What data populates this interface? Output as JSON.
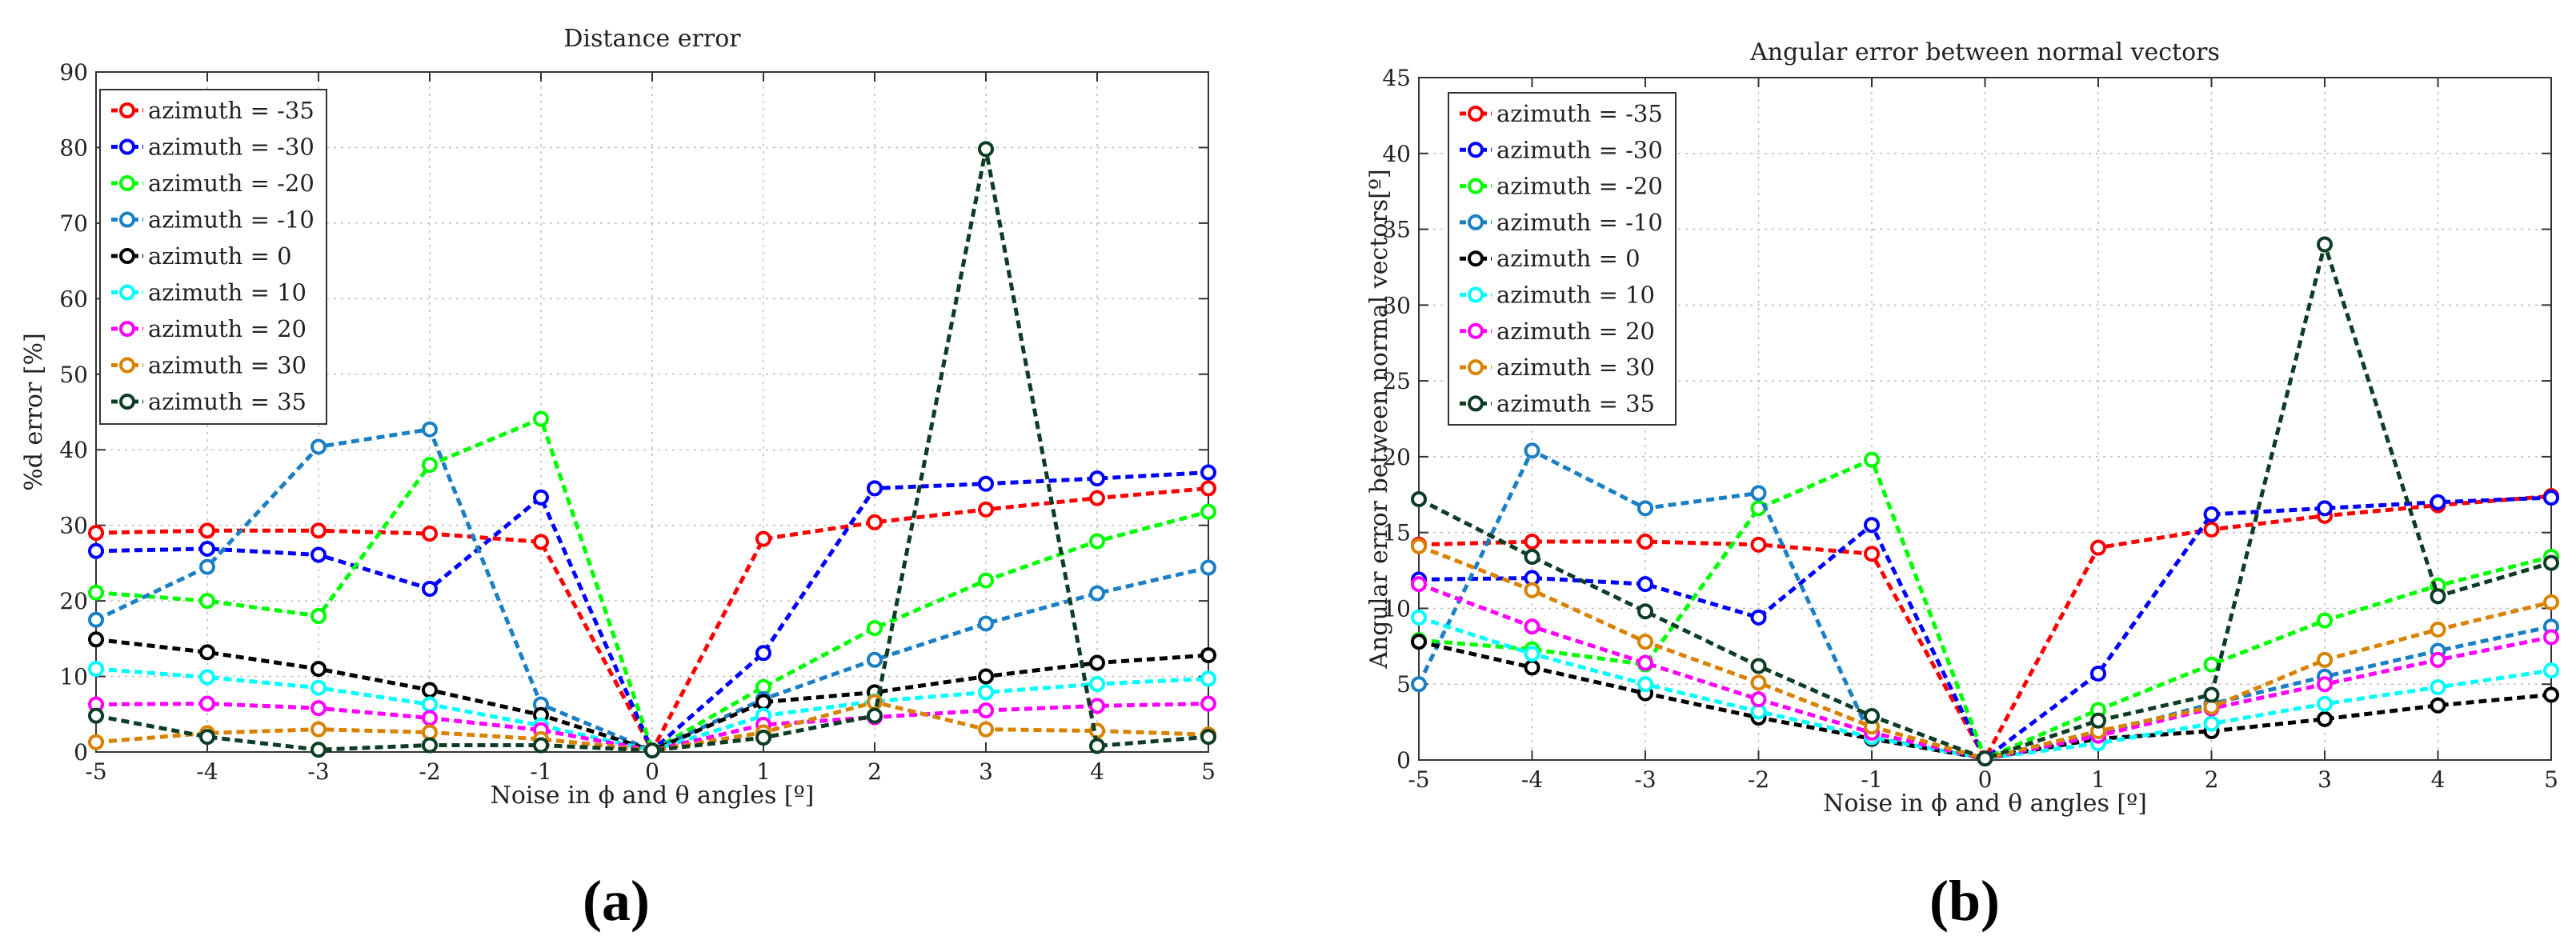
{
  "chart_data": [
    {
      "type": "line",
      "panel_label": "(a)",
      "title": "Distance error",
      "xlabel": "Noise in ϕ and θ angles [º]",
      "ylabel": "%d error [%]",
      "xlim": [
        -5,
        5
      ],
      "ylim": [
        0,
        90
      ],
      "xticks": [
        -5,
        -4,
        -3,
        -2,
        -1,
        0,
        1,
        2,
        3,
        4,
        5
      ],
      "yticks": [
        0,
        10,
        20,
        30,
        40,
        50,
        60,
        70,
        80,
        90
      ],
      "grid": true,
      "legend_position": "top-left",
      "x": [
        -5,
        -4,
        -3,
        -2,
        -1,
        0,
        1,
        2,
        3,
        4,
        5
      ],
      "series": [
        {
          "name": "azimuth = -35",
          "color": "#ff0000",
          "values": [
            29,
            29.3,
            29.3,
            28.9,
            27.8,
            0.2,
            28.2,
            30.4,
            32.1,
            33.6,
            34.9
          ]
        },
        {
          "name": "azimuth = -30",
          "color": "#0000ff",
          "values": [
            26.6,
            26.9,
            26.1,
            21.6,
            33.7,
            0.2,
            13.1,
            34.9,
            35.5,
            36.2,
            37.0
          ]
        },
        {
          "name": "azimuth = -20",
          "color": "#00ff00",
          "values": [
            21.1,
            20.0,
            18.0,
            38.0,
            44.1,
            0.2,
            8.6,
            16.4,
            22.7,
            27.9,
            31.8
          ]
        },
        {
          "name": "azimuth = -10",
          "color": "#1a7fc4",
          "values": [
            17.5,
            24.5,
            40.4,
            42.7,
            6.3,
            0.2,
            7.0,
            12.2,
            17.0,
            21.0,
            24.4
          ]
        },
        {
          "name": "azimuth = 0",
          "color": "#000000",
          "values": [
            14.9,
            13.2,
            11.0,
            8.2,
            4.9,
            0.2,
            6.6,
            7.9,
            10.0,
            11.8,
            12.8
          ]
        },
        {
          "name": "azimuth = 10",
          "color": "#00ffff",
          "values": [
            11.0,
            9.9,
            8.5,
            6.3,
            3.5,
            0.2,
            4.8,
            6.7,
            7.9,
            9.0,
            9.7
          ]
        },
        {
          "name": "azimuth = 20",
          "color": "#ff00ff",
          "values": [
            6.3,
            6.4,
            5.8,
            4.5,
            2.9,
            0.2,
            3.6,
            4.6,
            5.5,
            6.1,
            6.4
          ]
        },
        {
          "name": "azimuth = 30",
          "color": "#d98200",
          "values": [
            1.3,
            2.5,
            3.0,
            2.6,
            1.7,
            0.2,
            2.6,
            6.6,
            3.0,
            2.8,
            2.3
          ]
        },
        {
          "name": "azimuth = 35",
          "color": "#0d3d25",
          "values": [
            4.8,
            2.0,
            0.3,
            0.9,
            0.9,
            0.2,
            1.9,
            4.8,
            79.8,
            0.8,
            2.0
          ]
        }
      ]
    },
    {
      "type": "line",
      "panel_label": "(b)",
      "title": "Angular error between normal vectors",
      "xlabel": "Noise in ϕ and θ angles [º]",
      "ylabel": "Angular error between normal vectors[º]",
      "xlim": [
        -5,
        5
      ],
      "ylim": [
        0,
        45
      ],
      "xticks": [
        -5,
        -4,
        -3,
        -2,
        -1,
        0,
        1,
        2,
        3,
        4,
        5
      ],
      "yticks": [
        0,
        5,
        10,
        15,
        20,
        25,
        30,
        35,
        40,
        45
      ],
      "grid": true,
      "legend_position": "top-left",
      "x": [
        -5,
        -4,
        -3,
        -2,
        -1,
        0,
        1,
        2,
        3,
        4,
        5
      ],
      "series": [
        {
          "name": "azimuth = -35",
          "color": "#ff0000",
          "values": [
            14.2,
            14.4,
            14.4,
            14.2,
            13.6,
            0.1,
            14.0,
            15.2,
            16.1,
            16.8,
            17.4
          ]
        },
        {
          "name": "azimuth = -30",
          "color": "#0000ff",
          "values": [
            11.9,
            12.0,
            11.6,
            9.4,
            15.5,
            0.1,
            5.7,
            16.2,
            16.6,
            17.0,
            17.3
          ]
        },
        {
          "name": "azimuth = -20",
          "color": "#00ff00",
          "values": [
            7.9,
            7.3,
            6.3,
            16.6,
            19.8,
            0.1,
            3.3,
            6.3,
            9.2,
            11.5,
            13.4
          ]
        },
        {
          "name": "azimuth = -10",
          "color": "#1a7fc4",
          "values": [
            5.0,
            20.4,
            16.6,
            17.6,
            1.4,
            0.1,
            1.7,
            3.7,
            5.5,
            7.2,
            8.8
          ]
        },
        {
          "name": "azimuth = 0",
          "color": "#000000",
          "values": [
            7.8,
            6.1,
            4.4,
            2.8,
            1.4,
            0.1,
            1.4,
            1.9,
            2.7,
            3.6,
            4.3
          ]
        },
        {
          "name": "azimuth = 10",
          "color": "#00ffff",
          "values": [
            9.4,
            7.0,
            5.0,
            3.2,
            1.5,
            0.1,
            1.1,
            2.4,
            3.7,
            4.8,
            5.9
          ]
        },
        {
          "name": "azimuth = 20",
          "color": "#ff00ff",
          "values": [
            11.6,
            8.8,
            6.4,
            4.0,
            1.8,
            0.1,
            1.6,
            3.4,
            5.0,
            6.6,
            8.1
          ]
        },
        {
          "name": "azimuth = 30",
          "color": "#d98200",
          "values": [
            14.1,
            11.2,
            7.8,
            5.1,
            2.2,
            0.1,
            1.9,
            3.5,
            6.6,
            8.6,
            10.4
          ]
        },
        {
          "name": "azimuth = 35",
          "color": "#0d3d25",
          "values": [
            17.2,
            13.4,
            9.8,
            6.2,
            2.9,
            0.1,
            2.6,
            4.3,
            34.0,
            10.8,
            13.0
          ]
        }
      ]
    }
  ]
}
